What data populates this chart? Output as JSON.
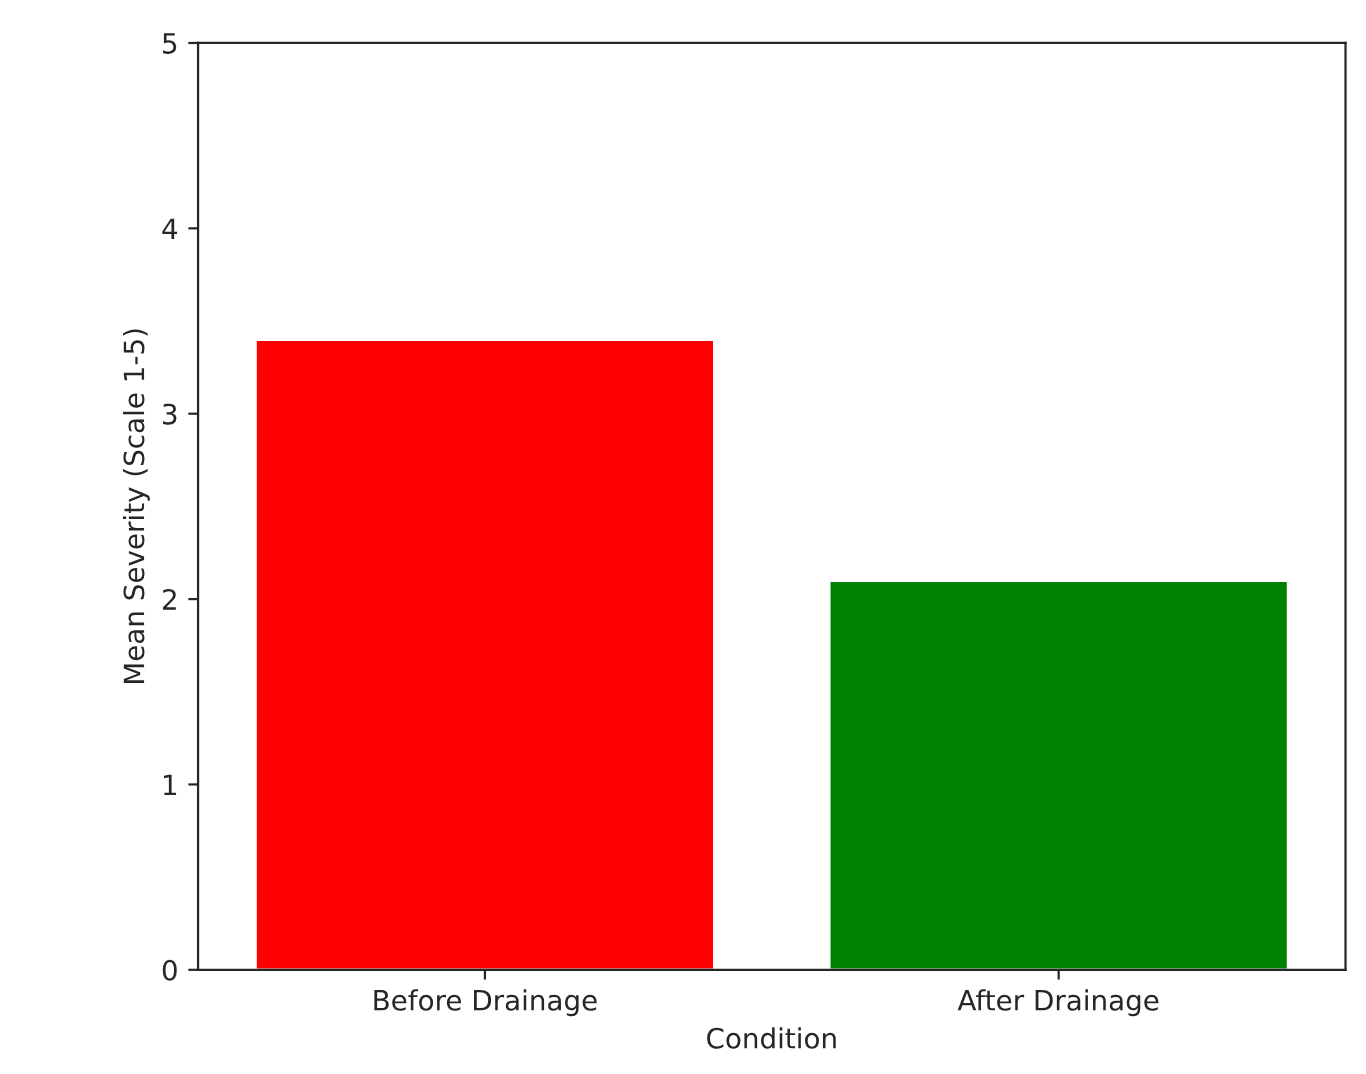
{
  "chart_data": {
    "type": "bar",
    "xlabel": "Condition",
    "ylabel": "Mean Severity (Scale 1-5)",
    "categories": [
      "Before Drainage",
      "After Drainage"
    ],
    "values": [
      3.4,
      2.1
    ],
    "colors": [
      "#ff0000",
      "#008000"
    ],
    "ylim": [
      0,
      5
    ],
    "yticks": [
      0,
      1,
      2,
      3,
      4,
      5
    ],
    "grid": false
  }
}
